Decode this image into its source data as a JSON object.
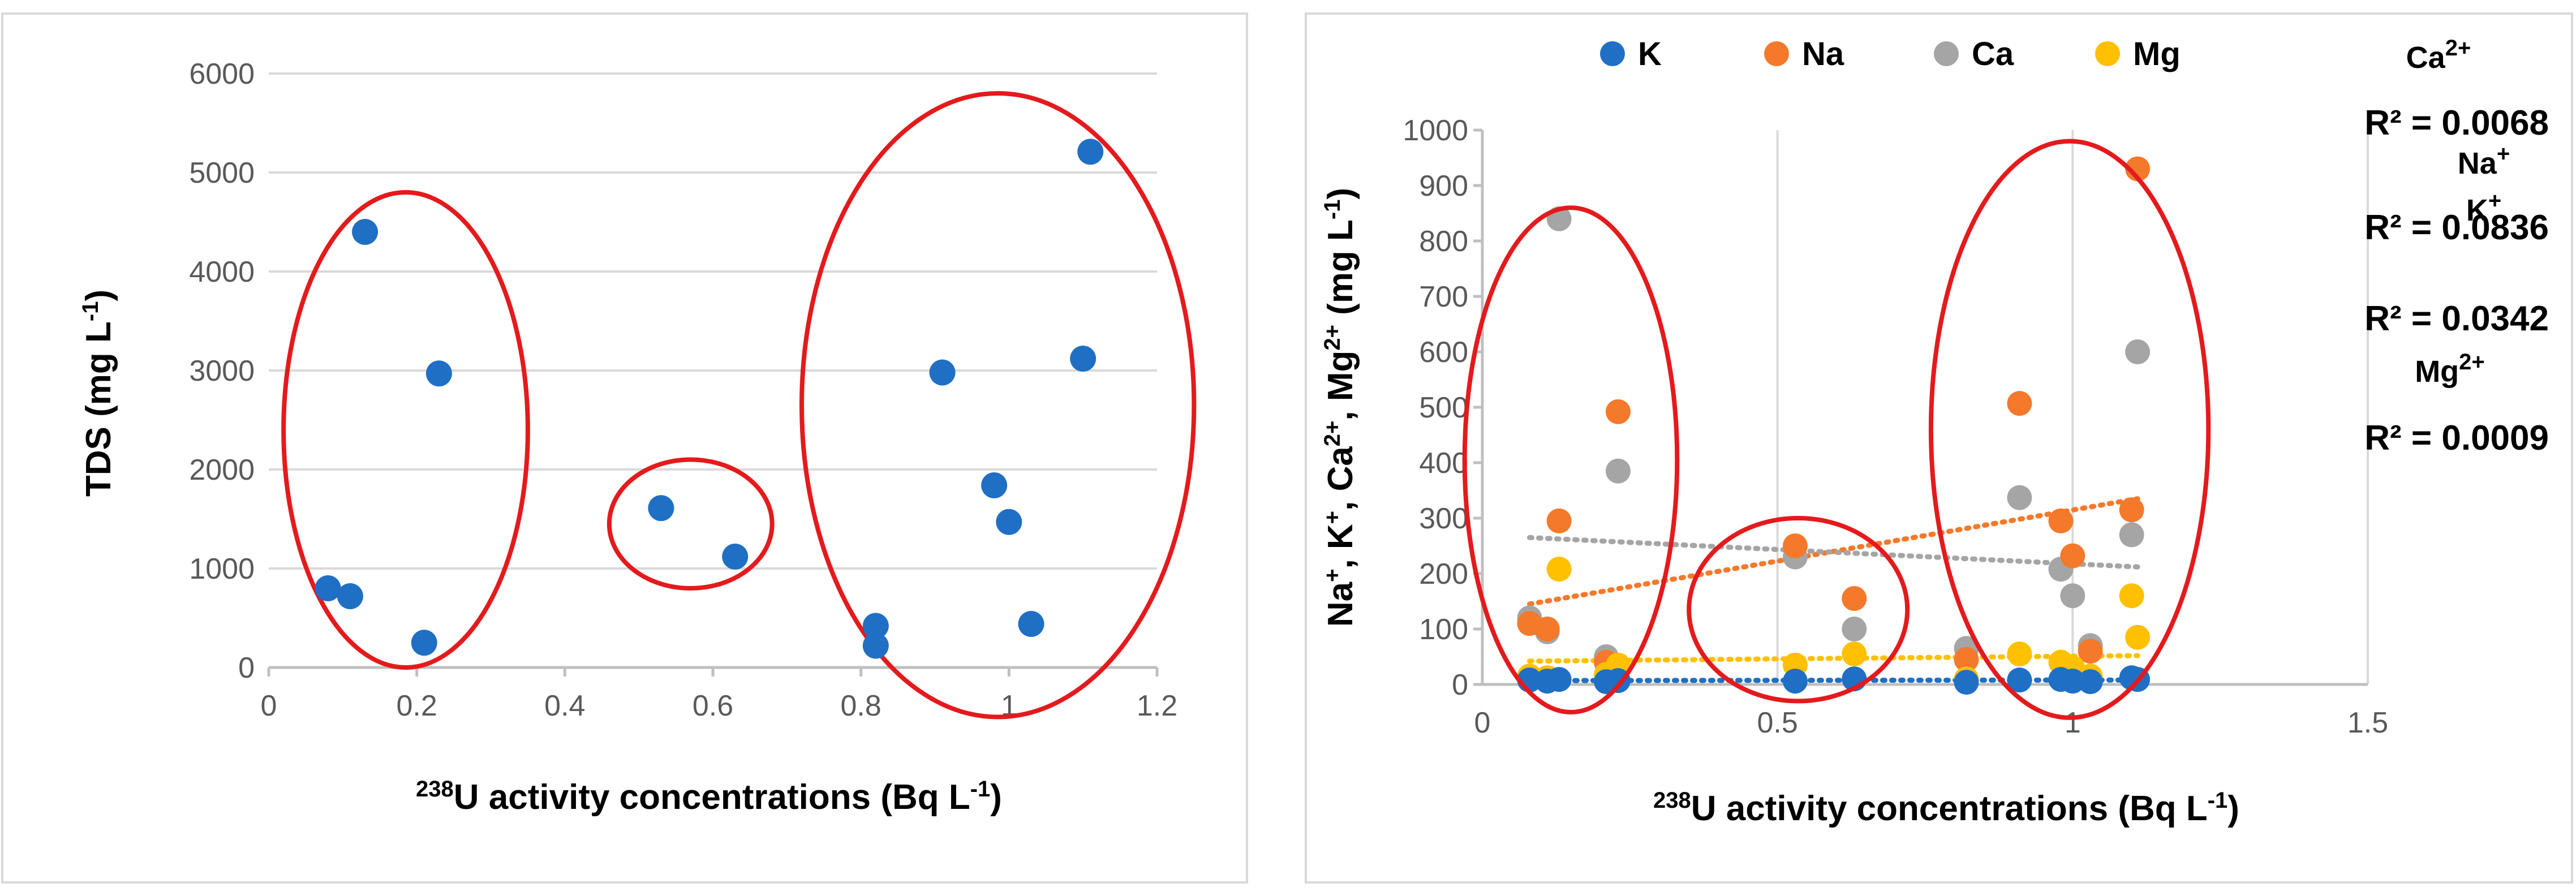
{
  "colors": {
    "K": "#1f6fc5",
    "Na": "#f4792b",
    "Ca": "#a5a5a5",
    "Mg": "#ffc000",
    "highlight": "#e41a1c",
    "grid": "#d9d9d9"
  },
  "chart_data": [
    {
      "type": "scatter",
      "title": "",
      "ylabel": "TDS (mg L",
      "ylabel_sup": "-1",
      "ylabel_suffix": ")",
      "xlabel_sup": "238",
      "xlabel": "U activity concentrations (Bq L",
      "xlabel_sup2": "-1",
      "xlabel_suffix": ")",
      "xlim": [
        0,
        1.2
      ],
      "ylim": [
        0,
        6000
      ],
      "xticks": [
        "0",
        "0.2",
        "0.4",
        "0.6",
        "0.8",
        "1",
        "1.2"
      ],
      "yticks": [
        "0",
        "1000",
        "2000",
        "3000",
        "4000",
        "5000",
        "6000"
      ],
      "grid": "horizontal",
      "series": [
        {
          "name": "TDS",
          "color": "K",
          "x": [
            0.08,
            0.11,
            0.13,
            0.21,
            0.23,
            0.53,
            0.63,
            0.82,
            0.82,
            0.91,
            0.98,
            1.0,
            1.03,
            1.1,
            1.11
          ],
          "y": [
            800,
            720,
            4400,
            250,
            2970,
            1610,
            1120,
            420,
            220,
            2980,
            1840,
            1470,
            440,
            3120,
            5210
          ]
        }
      ],
      "highlight_groups": [
        {
          "x_range": [
            0.02,
            0.35
          ],
          "y_range": [
            0,
            4800
          ]
        },
        {
          "x_range": [
            0.46,
            0.68
          ],
          "y_range": [
            800,
            2100
          ]
        },
        {
          "x_range": [
            0.72,
            1.25
          ],
          "y_range": [
            -500,
            5800
          ]
        }
      ]
    },
    {
      "type": "scatter",
      "title": "",
      "ylabel_parts": [
        "Na",
        "+",
        ", K",
        "+",
        ", Ca",
        "2+",
        ", Mg",
        "2+",
        " (mg L",
        "-1",
        ")"
      ],
      "xlabel_sup": "238",
      "xlabel": "U activity concentrations (Bq L",
      "xlabel_sup2": "-1",
      "xlabel_suffix": ")",
      "xlim": [
        0,
        1.5
      ],
      "ylim": [
        0,
        1000
      ],
      "xticks": [
        "0",
        "0.5",
        "1",
        "1.5"
      ],
      "yticks": [
        "0",
        "100",
        "200",
        "300",
        "400",
        "500",
        "600",
        "700",
        "800",
        "900",
        "1000"
      ],
      "grid": "vertical",
      "legend": [
        "K",
        "Na",
        "Ca",
        "Mg"
      ],
      "legend_position": "top",
      "series": [
        {
          "name": "K",
          "x": [
            0.08,
            0.11,
            0.13,
            0.21,
            0.23,
            0.53,
            0.63,
            0.82,
            0.91,
            0.98,
            1.0,
            1.03,
            1.1,
            1.11
          ],
          "y": [
            8,
            6,
            9,
            5,
            7,
            6,
            10,
            4,
            8,
            9,
            6,
            5,
            12,
            9
          ]
        },
        {
          "name": "Na",
          "x": [
            0.08,
            0.11,
            0.13,
            0.21,
            0.23,
            0.53,
            0.63,
            0.82,
            0.91,
            0.98,
            1.0,
            1.03,
            1.1,
            1.11
          ],
          "y": [
            110,
            100,
            295,
            40,
            492,
            250,
            155,
            45,
            507,
            295,
            232,
            60,
            315,
            930
          ]
        },
        {
          "name": "Ca",
          "x": [
            0.08,
            0.11,
            0.13,
            0.21,
            0.23,
            0.53,
            0.63,
            0.82,
            0.91,
            0.98,
            1.0,
            1.03,
            1.1,
            1.11
          ],
          "y": [
            120,
            95,
            840,
            50,
            385,
            230,
            100,
            65,
            337,
            208,
            160,
            70,
            270,
            600
          ]
        },
        {
          "name": "Mg",
          "x": [
            0.08,
            0.11,
            0.13,
            0.21,
            0.23,
            0.53,
            0.63,
            0.82,
            0.91,
            0.98,
            1.0,
            1.03,
            1.1,
            1.11
          ],
          "y": [
            15,
            12,
            208,
            18,
            35,
            35,
            55,
            10,
            55,
            40,
            30,
            15,
            160,
            85
          ]
        }
      ],
      "trendlines": [
        {
          "series": "K",
          "x": [
            0.08,
            1.11
          ],
          "y": [
            7,
            8
          ]
        },
        {
          "series": "Na",
          "x": [
            0.08,
            1.11
          ],
          "y": [
            145,
            335
          ]
        },
        {
          "series": "Ca",
          "x": [
            0.08,
            1.11
          ],
          "y": [
            265,
            212
          ]
        },
        {
          "series": "Mg",
          "x": [
            0.08,
            1.11
          ],
          "y": [
            42,
            52
          ]
        }
      ],
      "annotations": [
        {
          "ion": "Ca",
          "ion_sup": "2+",
          "r2": "R² = 0.0068"
        },
        {
          "ion": "Na",
          "ion_sup": "+",
          "r2": "R² = 0.0836"
        },
        {
          "ion": "K",
          "ion_sup": "+",
          "r2": "R² = 0.0342"
        },
        {
          "ion": "Mg",
          "ion_sup": "2+",
          "r2": "R² = 0.0009"
        }
      ],
      "highlight_groups": [
        {
          "x_range": [
            -0.03,
            0.33
          ],
          "y_range": [
            -50,
            860
          ]
        },
        {
          "x_range": [
            0.35,
            0.72
          ],
          "y_range": [
            -30,
            300
          ]
        },
        {
          "x_range": [
            0.76,
            1.23
          ],
          "y_range": [
            -60,
            980
          ]
        }
      ]
    }
  ]
}
